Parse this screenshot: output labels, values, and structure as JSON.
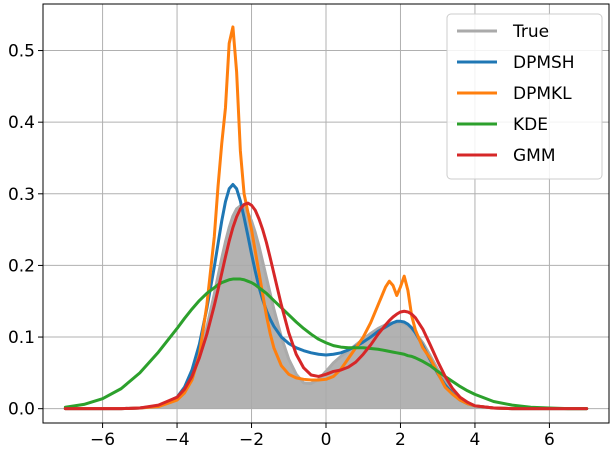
{
  "chart_data": {
    "type": "line",
    "title": "",
    "xlabel": "",
    "ylabel": "",
    "xlim": [
      -7.6,
      7.6
    ],
    "ylim": [
      -0.02,
      0.565
    ],
    "xticks": [
      -6,
      -4,
      -2,
      0,
      2,
      4,
      6
    ],
    "yticks": [
      0.0,
      0.1,
      0.2,
      0.3,
      0.4,
      0.5
    ],
    "xtick_labels": [
      "−6",
      "−4",
      "−2",
      "0",
      "2",
      "4",
      "6"
    ],
    "ytick_labels": [
      "0.0",
      "0.1",
      "0.2",
      "0.3",
      "0.4",
      "0.5"
    ],
    "grid": true,
    "legend_position": "top-right",
    "x": [
      -7.0,
      -6.5,
      -6.0,
      -5.5,
      -5.0,
      -4.5,
      -4.0,
      -3.8,
      -3.6,
      -3.4,
      -3.2,
      -3.0,
      -2.9,
      -2.8,
      -2.7,
      -2.6,
      -2.5,
      -2.4,
      -2.3,
      -2.2,
      -2.1,
      -2.0,
      -1.9,
      -1.8,
      -1.7,
      -1.6,
      -1.5,
      -1.4,
      -1.2,
      -1.0,
      -0.8,
      -0.6,
      -0.4,
      -0.2,
      0.0,
      0.2,
      0.4,
      0.6,
      0.8,
      1.0,
      1.2,
      1.4,
      1.6,
      1.7,
      1.8,
      1.9,
      2.0,
      2.1,
      2.2,
      2.3,
      2.4,
      2.6,
      2.8,
      3.0,
      3.2,
      3.4,
      3.6,
      3.8,
      4.0,
      4.5,
      5.0,
      5.5,
      6.0,
      6.5,
      7.0
    ],
    "series": [
      {
        "name": "True",
        "color": "#aaaaaa",
        "filled": true,
        "values": [
          0.0,
          0.0,
          0.0,
          0.0,
          0.001,
          0.003,
          0.014,
          0.026,
          0.045,
          0.075,
          0.114,
          0.16,
          0.185,
          0.21,
          0.233,
          0.253,
          0.269,
          0.279,
          0.283,
          0.281,
          0.274,
          0.262,
          0.246,
          0.227,
          0.205,
          0.183,
          0.161,
          0.139,
          0.1,
          0.069,
          0.048,
          0.036,
          0.035,
          0.041,
          0.052,
          0.064,
          0.073,
          0.081,
          0.089,
          0.097,
          0.105,
          0.112,
          0.117,
          0.119,
          0.12,
          0.12,
          0.12,
          0.119,
          0.116,
          0.112,
          0.106,
          0.092,
          0.074,
          0.055,
          0.038,
          0.025,
          0.015,
          0.008,
          0.004,
          0.001,
          0.0,
          0.0,
          0.0,
          0.0,
          0.0
        ]
      },
      {
        "name": "DPMSH",
        "color": "#1f77b4",
        "values": [
          0.0,
          0.0,
          0.0,
          0.0,
          0.001,
          0.004,
          0.016,
          0.03,
          0.054,
          0.09,
          0.14,
          0.198,
          0.23,
          0.262,
          0.289,
          0.307,
          0.313,
          0.307,
          0.29,
          0.267,
          0.242,
          0.216,
          0.192,
          0.17,
          0.152,
          0.137,
          0.125,
          0.115,
          0.1,
          0.091,
          0.085,
          0.081,
          0.078,
          0.076,
          0.075,
          0.076,
          0.078,
          0.082,
          0.087,
          0.093,
          0.1,
          0.108,
          0.114,
          0.117,
          0.12,
          0.122,
          0.122,
          0.121,
          0.118,
          0.113,
          0.106,
          0.088,
          0.068,
          0.049,
          0.033,
          0.021,
          0.012,
          0.007,
          0.004,
          0.001,
          0.0,
          0.0,
          0.0,
          0.0,
          0.0
        ]
      },
      {
        "name": "DPMKL",
        "color": "#ff7f0e",
        "values": [
          0.0,
          0.0,
          0.0,
          0.0,
          0.001,
          0.003,
          0.012,
          0.022,
          0.04,
          0.075,
          0.145,
          0.24,
          0.31,
          0.37,
          0.42,
          0.51,
          0.533,
          0.47,
          0.36,
          0.3,
          0.275,
          0.25,
          0.22,
          0.19,
          0.16,
          0.13,
          0.105,
          0.085,
          0.06,
          0.048,
          0.043,
          0.041,
          0.04,
          0.04,
          0.041,
          0.045,
          0.055,
          0.07,
          0.085,
          0.1,
          0.12,
          0.145,
          0.17,
          0.178,
          0.172,
          0.158,
          0.17,
          0.185,
          0.165,
          0.13,
          0.11,
          0.085,
          0.07,
          0.05,
          0.03,
          0.02,
          0.012,
          0.007,
          0.004,
          0.001,
          0.0,
          0.0,
          0.0,
          0.0,
          0.0
        ]
      },
      {
        "name": "KDE",
        "color": "#2ca02c",
        "values": [
          0.002,
          0.006,
          0.014,
          0.028,
          0.05,
          0.079,
          0.112,
          0.126,
          0.139,
          0.151,
          0.161,
          0.169,
          0.173,
          0.176,
          0.178,
          0.18,
          0.181,
          0.181,
          0.181,
          0.18,
          0.178,
          0.176,
          0.173,
          0.169,
          0.165,
          0.161,
          0.156,
          0.151,
          0.141,
          0.131,
          0.121,
          0.112,
          0.104,
          0.097,
          0.092,
          0.088,
          0.086,
          0.085,
          0.085,
          0.085,
          0.084,
          0.083,
          0.081,
          0.08,
          0.079,
          0.078,
          0.077,
          0.076,
          0.074,
          0.073,
          0.071,
          0.066,
          0.06,
          0.052,
          0.045,
          0.038,
          0.031,
          0.025,
          0.02,
          0.01,
          0.005,
          0.002,
          0.001,
          0.0,
          0.0
        ]
      },
      {
        "name": "GMM",
        "color": "#d62728",
        "values": [
          0.0,
          0.0,
          0.0,
          0.0,
          0.001,
          0.005,
          0.016,
          0.027,
          0.045,
          0.071,
          0.104,
          0.144,
          0.166,
          0.189,
          0.212,
          0.234,
          0.253,
          0.268,
          0.279,
          0.285,
          0.287,
          0.284,
          0.277,
          0.265,
          0.25,
          0.232,
          0.211,
          0.189,
          0.145,
          0.106,
          0.076,
          0.057,
          0.047,
          0.045,
          0.048,
          0.052,
          0.054,
          0.058,
          0.065,
          0.076,
          0.089,
          0.104,
          0.117,
          0.123,
          0.128,
          0.132,
          0.135,
          0.136,
          0.135,
          0.132,
          0.127,
          0.111,
          0.089,
          0.066,
          0.045,
          0.028,
          0.016,
          0.009,
          0.004,
          0.001,
          0.0,
          0.0,
          0.0,
          0.0,
          0.0
        ]
      }
    ]
  }
}
